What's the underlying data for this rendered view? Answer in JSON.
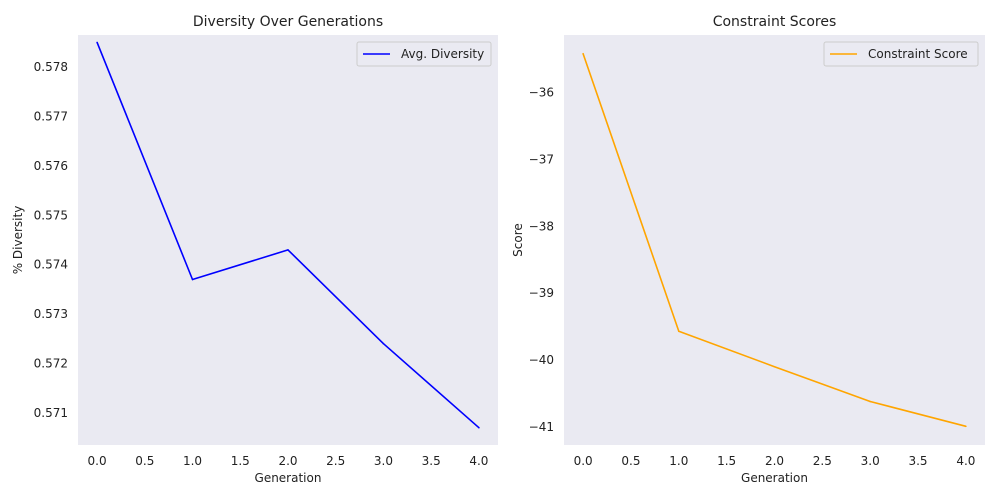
{
  "chart_data": [
    {
      "type": "line",
      "title": "Diversity Over Generations",
      "xlabel": "Generation",
      "ylabel": "% Diversity",
      "x": [
        0,
        1,
        2,
        3,
        4
      ],
      "series": [
        {
          "name": "Avg. Diversity",
          "values": [
            0.5785,
            0.5737,
            0.5743,
            0.5724,
            0.5707
          ],
          "color": "#0000ff"
        }
      ],
      "xlim": [
        -0.2,
        4.2
      ],
      "ylim": [
        0.57035,
        0.57865
      ],
      "xticks": [
        0.0,
        0.5,
        1.0,
        1.5,
        2.0,
        2.5,
        3.0,
        3.5,
        4.0
      ],
      "xtick_labels": [
        "0.0",
        "0.5",
        "1.0",
        "1.5",
        "2.0",
        "2.5",
        "3.0",
        "3.5",
        "4.0"
      ],
      "yticks": [
        0.571,
        0.572,
        0.573,
        0.574,
        0.575,
        0.576,
        0.577,
        0.578
      ],
      "ytick_labels": [
        "0.571",
        "0.572",
        "0.573",
        "0.574",
        "0.575",
        "0.576",
        "0.577",
        "0.578"
      ],
      "legend": "top-right",
      "grid": false,
      "background": "#eaeaf2"
    },
    {
      "type": "line",
      "title": "Constraint Scores",
      "xlabel": "Generation",
      "ylabel": "Score",
      "x": [
        0,
        1,
        2,
        3,
        4
      ],
      "series": [
        {
          "name": "Constraint Score",
          "values": [
            -35.42,
            -39.57,
            -40.1,
            -40.62,
            -40.99
          ],
          "color": "#ffa500"
        }
      ],
      "xlim": [
        -0.2,
        4.2
      ],
      "ylim": [
        -41.27,
        -35.14
      ],
      "xticks": [
        0.0,
        0.5,
        1.0,
        1.5,
        2.0,
        2.5,
        3.0,
        3.5,
        4.0
      ],
      "xtick_labels": [
        "0.0",
        "0.5",
        "1.0",
        "1.5",
        "2.0",
        "2.5",
        "3.0",
        "3.5",
        "4.0"
      ],
      "yticks": [
        -36,
        -37,
        -38,
        -39,
        -40,
        -41
      ],
      "ytick_labels": [
        "−36",
        "−37",
        "−38",
        "−39",
        "−40",
        "−41"
      ],
      "legend": "top-right",
      "grid": false,
      "background": "#eaeaf2"
    }
  ]
}
